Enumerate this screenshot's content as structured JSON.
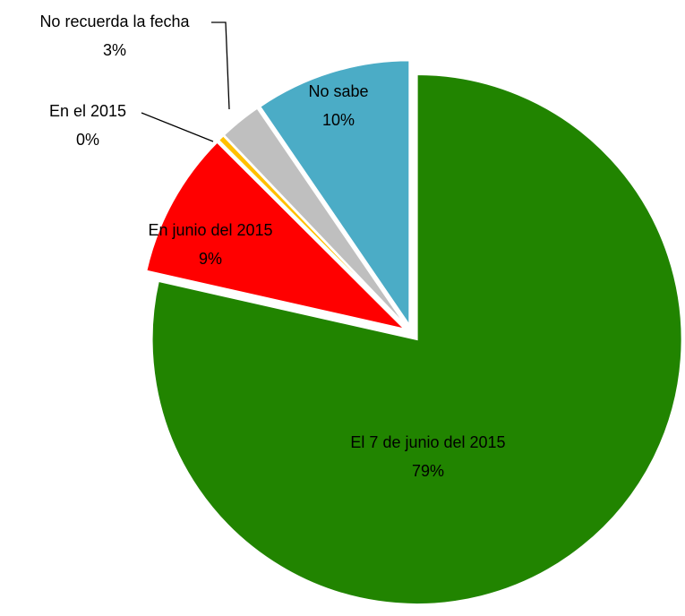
{
  "chart_data": {
    "type": "pie",
    "categories": [
      "El 7 de junio del 2015",
      "En junio del 2015",
      "En el 2015",
      "No recuerda la fecha",
      "No sabe"
    ],
    "values": [
      79,
      9,
      0.4,
      2.6,
      9.6
    ],
    "value_labels": [
      "79%",
      "9%",
      "0%",
      "3%",
      "10%"
    ],
    "colors": [
      "#218400",
      "#ff0000",
      "#ffc000",
      "#bfbfbf",
      "#4bacc6"
    ]
  }
}
